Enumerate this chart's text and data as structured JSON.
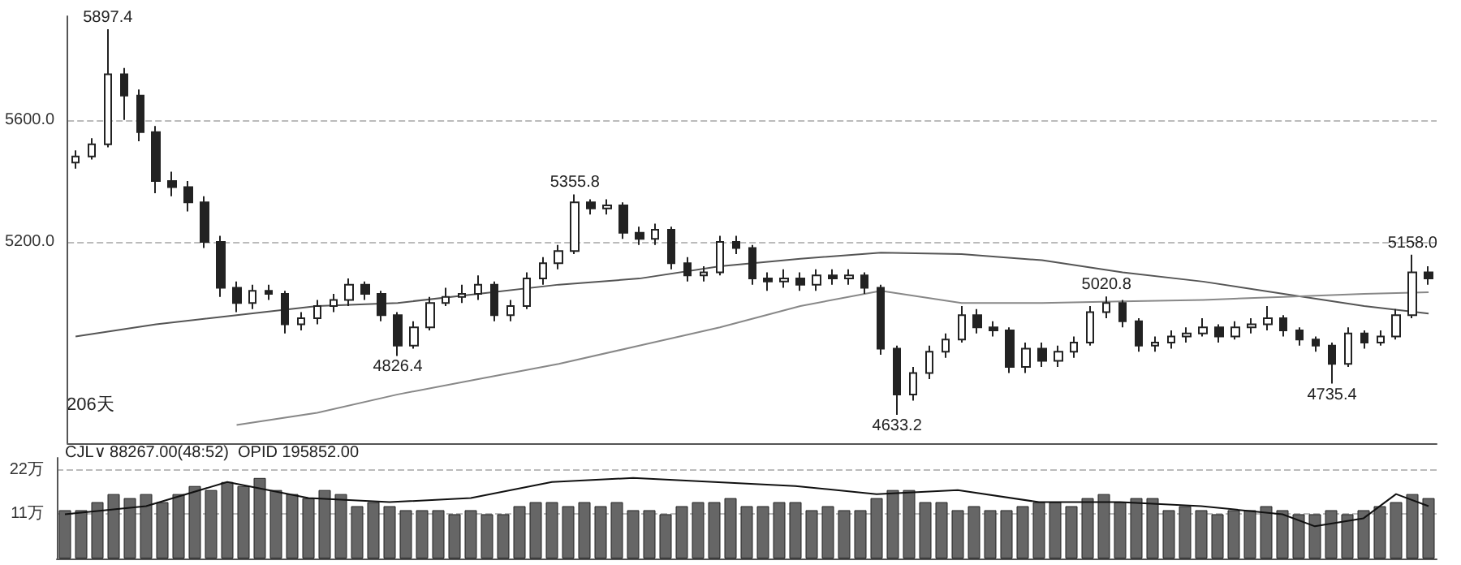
{
  "chart_data": [
    {
      "type": "candlestick",
      "ylim": [
        4540,
        5940
      ],
      "yticks": [
        {
          "value": 5600,
          "label": "5600.0"
        },
        {
          "value": 5200,
          "label": "5200.0"
        }
      ],
      "grid": "y",
      "tick_labels": "y",
      "marker": "none",
      "categories": [
        null,
        null,
        null,
        null,
        null,
        null,
        null,
        null,
        null,
        null,
        null,
        null,
        null,
        null,
        null,
        null,
        null,
        null,
        null,
        null,
        null,
        null,
        null,
        null,
        null,
        null,
        null,
        null,
        null,
        null,
        null,
        null,
        null,
        null,
        null,
        null,
        null,
        null,
        null,
        null,
        null,
        null,
        null,
        null,
        null,
        null,
        null,
        null,
        null,
        null,
        null,
        null,
        null,
        null,
        null,
        null,
        null,
        null,
        null,
        null,
        null,
        null,
        null,
        null,
        null,
        null,
        null,
        null,
        null,
        null,
        null,
        null,
        null,
        null,
        null,
        null,
        null,
        null,
        null,
        null,
        null,
        null,
        null,
        null,
        null
      ],
      "annotations": [
        {
          "text": "5897.4",
          "y": 5897.4
        },
        {
          "text": "4826.4",
          "y": 4826.4
        },
        {
          "text": "5355.8",
          "y": 5355.8
        },
        {
          "text": "4633.2",
          "y": 4633.2
        },
        {
          "text": "5020.8",
          "y": 5020.8
        },
        {
          "text": "4735.4",
          "y": 4735.4
        },
        {
          "text": "5158.0",
          "y": 5158
        },
        "206天"
      ],
      "series": [
        {
          "type": "candlestick",
          "color": "#222222",
          "ohlc": [
            [
              5460,
              5500,
              5440,
              5480
            ],
            [
              5480,
              5540,
              5470,
              5520
            ],
            [
              5520,
              5897.4,
              5510,
              5750
            ],
            [
              5750,
              5770,
              5600,
              5680
            ],
            [
              5680,
              5700,
              5530,
              5560
            ],
            [
              5560,
              5580,
              5360,
              5400
            ],
            [
              5400,
              5430,
              5350,
              5380
            ],
            [
              5380,
              5400,
              5300,
              5330
            ],
            [
              5330,
              5350,
              5180,
              5200
            ],
            [
              5200,
              5220,
              5020,
              5050
            ],
            [
              5050,
              5070,
              4970,
              5000
            ],
            [
              5000,
              5060,
              4980,
              5040
            ],
            [
              5040,
              5060,
              5010,
              5030
            ],
            [
              5030,
              5040,
              4900,
              4930
            ],
            [
              4930,
              4970,
              4910,
              4950
            ],
            [
              4950,
              5010,
              4930,
              4990
            ],
            [
              4990,
              5030,
              4970,
              5010
            ],
            [
              5010,
              5080,
              4990,
              5060
            ],
            [
              5060,
              5070,
              5010,
              5030
            ],
            [
              5030,
              5040,
              4940,
              4960
            ],
            [
              4960,
              4970,
              4826.4,
              4860
            ],
            [
              4860,
              4940,
              4850,
              4920
            ],
            [
              4920,
              5020,
              4910,
              5000
            ],
            [
              5000,
              5050,
              4990,
              5020
            ],
            [
              5020,
              5060,
              5000,
              5030
            ],
            [
              5030,
              5090,
              5010,
              5060
            ],
            [
              5060,
              5070,
              4940,
              4960
            ],
            [
              4960,
              5010,
              4940,
              4990
            ],
            [
              4990,
              5100,
              4980,
              5080
            ],
            [
              5080,
              5150,
              5060,
              5130
            ],
            [
              5130,
              5190,
              5110,
              5170
            ],
            [
              5170,
              5355.8,
              5160,
              5330
            ],
            [
              5330,
              5340,
              5290,
              5310
            ],
            [
              5310,
              5340,
              5290,
              5320
            ],
            [
              5320,
              5330,
              5210,
              5230
            ],
            [
              5230,
              5250,
              5190,
              5210
            ],
            [
              5210,
              5260,
              5190,
              5240
            ],
            [
              5240,
              5250,
              5110,
              5130
            ],
            [
              5130,
              5150,
              5070,
              5090
            ],
            [
              5090,
              5120,
              5070,
              5100
            ],
            [
              5100,
              5220,
              5090,
              5200
            ],
            [
              5200,
              5220,
              5160,
              5180
            ],
            [
              5180,
              5190,
              5060,
              5080
            ],
            [
              5080,
              5100,
              5040,
              5070
            ],
            [
              5070,
              5110,
              5050,
              5080
            ],
            [
              5080,
              5100,
              5040,
              5060
            ],
            [
              5060,
              5110,
              5040,
              5090
            ],
            [
              5090,
              5110,
              5060,
              5080
            ],
            [
              5080,
              5110,
              5060,
              5090
            ],
            [
              5090,
              5100,
              5030,
              5050
            ],
            [
              5050,
              5060,
              4830,
              4850
            ],
            [
              4850,
              4860,
              4633.2,
              4700
            ],
            [
              4700,
              4790,
              4680,
              4770
            ],
            [
              4770,
              4860,
              4750,
              4840
            ],
            [
              4840,
              4900,
              4820,
              4880
            ],
            [
              4880,
              4990,
              4870,
              4960
            ],
            [
              4960,
              4980,
              4900,
              4920
            ],
            [
              4920,
              4940,
              4890,
              4910
            ],
            [
              4910,
              4920,
              4770,
              4790
            ],
            [
              4790,
              4870,
              4770,
              4850
            ],
            [
              4850,
              4870,
              4790,
              4810
            ],
            [
              4810,
              4860,
              4790,
              4840
            ],
            [
              4840,
              4890,
              4820,
              4870
            ],
            [
              4870,
              4990,
              4860,
              4970
            ],
            [
              4970,
              5020.8,
              4950,
              5000
            ],
            [
              5000,
              5010,
              4920,
              4940
            ],
            [
              4940,
              4950,
              4840,
              4860
            ],
            [
              4860,
              4890,
              4840,
              4870
            ],
            [
              4870,
              4910,
              4850,
              4890
            ],
            [
              4890,
              4920,
              4870,
              4900
            ],
            [
              4900,
              4950,
              4890,
              4920
            ],
            [
              4920,
              4930,
              4870,
              4890
            ],
            [
              4890,
              4940,
              4880,
              4920
            ],
            [
              4920,
              4950,
              4900,
              4930
            ],
            [
              4930,
              4990,
              4910,
              4950
            ],
            [
              4950,
              4960,
              4890,
              4910
            ],
            [
              4910,
              4920,
              4860,
              4880
            ],
            [
              4880,
              4890,
              4840,
              4860
            ],
            [
              4860,
              4870,
              4735.4,
              4800
            ],
            [
              4800,
              4920,
              4790,
              4900
            ],
            [
              4900,
              4910,
              4850,
              4870
            ],
            [
              4870,
              4910,
              4860,
              4890
            ],
            [
              4890,
              4980,
              4880,
              4960
            ],
            [
              4960,
              5158,
              4950,
              5100
            ],
            [
              5100,
              5120,
              5060,
              5080
            ]
          ]
        },
        {
          "type": "line",
          "color": "#555555",
          "values": [
            4890,
            null,
            null,
            null,
            null,
            4930,
            null,
            null,
            null,
            null,
            4960,
            null,
            null,
            null,
            null,
            4990,
            null,
            null,
            null,
            null,
            5000,
            null,
            null,
            null,
            null,
            5030,
            null,
            null,
            null,
            null,
            5060,
            null,
            null,
            null,
            null,
            5080,
            null,
            null,
            null,
            null,
            5120,
            null,
            null,
            null,
            null,
            5145,
            null,
            null,
            null,
            null,
            5165,
            null,
            null,
            null,
            null,
            5160,
            null,
            null,
            null,
            null,
            5140,
            null,
            null,
            null,
            null,
            5100,
            null,
            null,
            null,
            null,
            5070,
            null,
            null,
            null,
            null,
            5030,
            null,
            null,
            null,
            null,
            4990,
            null,
            null,
            null,
            4965
          ]
        },
        {
          "type": "line",
          "color": "#888888",
          "values": [
            null,
            null,
            null,
            null,
            null,
            null,
            null,
            null,
            null,
            null,
            4600,
            null,
            null,
            null,
            null,
            4640,
            null,
            null,
            null,
            null,
            4700,
            null,
            null,
            null,
            null,
            4750,
            null,
            null,
            null,
            null,
            4800,
            null,
            null,
            null,
            null,
            4860,
            null,
            null,
            null,
            null,
            4920,
            null,
            null,
            null,
            null,
            4990,
            null,
            null,
            null,
            null,
            5040,
            null,
            null,
            null,
            null,
            5000,
            null,
            null,
            null,
            null,
            5000,
            null,
            null,
            null,
            null,
            5005,
            null,
            null,
            null,
            null,
            5010,
            null,
            null,
            null,
            null,
            5020,
            null,
            null,
            null,
            null,
            5030,
            null,
            null,
            null,
            5035
          ]
        }
      ]
    },
    {
      "type": "bar",
      "ylim": [
        0,
        25
      ],
      "yticks": [
        {
          "value": 22,
          "label": "22万"
        },
        {
          "value": 11,
          "label": "11万"
        }
      ],
      "grid": "y",
      "tick_labels": "y",
      "marker": "none",
      "categories": [
        null,
        null,
        null,
        null,
        null,
        null,
        null,
        null,
        null,
        null,
        null,
        null,
        null,
        null,
        null,
        null,
        null,
        null,
        null,
        null,
        null,
        null,
        null,
        null,
        null,
        null,
        null,
        null,
        null,
        null,
        null,
        null,
        null,
        null,
        null,
        null,
        null,
        null,
        null,
        null,
        null,
        null,
        null,
        null,
        null,
        null,
        null,
        null,
        null,
        null,
        null,
        null,
        null,
        null,
        null,
        null,
        null,
        null,
        null,
        null,
        null,
        null,
        null,
        null,
        null,
        null,
        null,
        null,
        null,
        null,
        null,
        null,
        null,
        null,
        null,
        null,
        null,
        null,
        null,
        null,
        null,
        null,
        null,
        null,
        null
      ],
      "annotations": [
        "CJL∨ 88267.00(48:52)  OPID 195852.00"
      ],
      "series": [
        {
          "type": "bar",
          "color": "#666666",
          "values": [
            12,
            12,
            14,
            16,
            15,
            16,
            14,
            16,
            18,
            17,
            19,
            18,
            20,
            17,
            16,
            15,
            17,
            16,
            13,
            14,
            13,
            12,
            12,
            12,
            11,
            12,
            11,
            11,
            13,
            14,
            14,
            13,
            14,
            13,
            14,
            12,
            12,
            11,
            13,
            14,
            14,
            15,
            13,
            13,
            14,
            14,
            12,
            13,
            12,
            12,
            15,
            17,
            17,
            14,
            14,
            12,
            13,
            12,
            12,
            13,
            14,
            14,
            13,
            15,
            16,
            14,
            15,
            15,
            12,
            13,
            12,
            11,
            12,
            12,
            13,
            12,
            11,
            11,
            12,
            11,
            12,
            13,
            14,
            16,
            15
          ]
        },
        {
          "type": "line",
          "color": "#111111",
          "values": [
            11,
            null,
            null,
            null,
            null,
            13,
            null,
            null,
            null,
            null,
            19,
            null,
            null,
            null,
            null,
            15,
            null,
            null,
            null,
            null,
            14,
            null,
            null,
            null,
            null,
            15,
            null,
            null,
            null,
            null,
            19,
            null,
            null,
            null,
            null,
            20,
            null,
            null,
            null,
            null,
            19,
            null,
            null,
            null,
            null,
            18,
            null,
            null,
            null,
            null,
            16,
            null,
            null,
            null,
            null,
            17,
            null,
            null,
            null,
            null,
            14,
            null,
            null,
            null,
            null,
            14,
            null,
            null,
            null,
            null,
            13,
            null,
            null,
            null,
            null,
            11,
            null,
            8,
            null,
            null,
            10,
            null,
            16,
            null,
            13
          ]
        }
      ]
    }
  ]
}
